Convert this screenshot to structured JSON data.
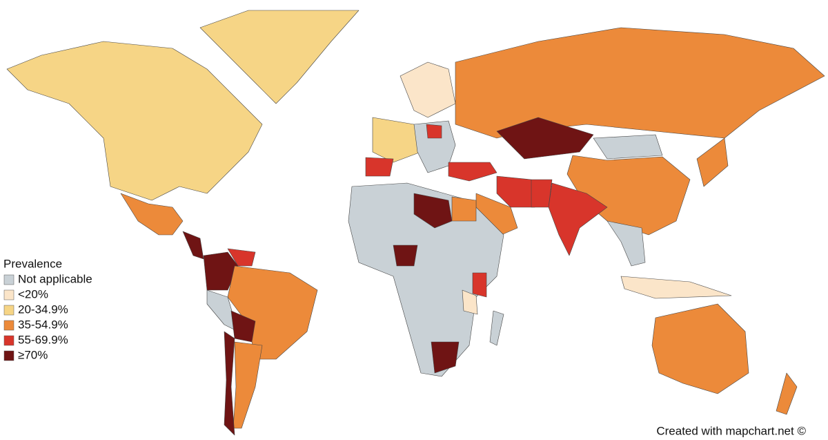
{
  "legend": {
    "title": "Prevalence",
    "items": [
      {
        "label": "Not applicable",
        "color": "#c9d1d6"
      },
      {
        "label": "<20%",
        "color": "#fbe5c9"
      },
      {
        "label": "20-34.9%",
        "color": "#f6d586"
      },
      {
        "label": "35-54.9%",
        "color": "#ec8a3a"
      },
      {
        "label": "55-69.9%",
        "color": "#d8352b"
      },
      {
        "label": "≥70%",
        "color": "#6f1414"
      }
    ]
  },
  "credit": "Created with mapchart.net ©"
}
